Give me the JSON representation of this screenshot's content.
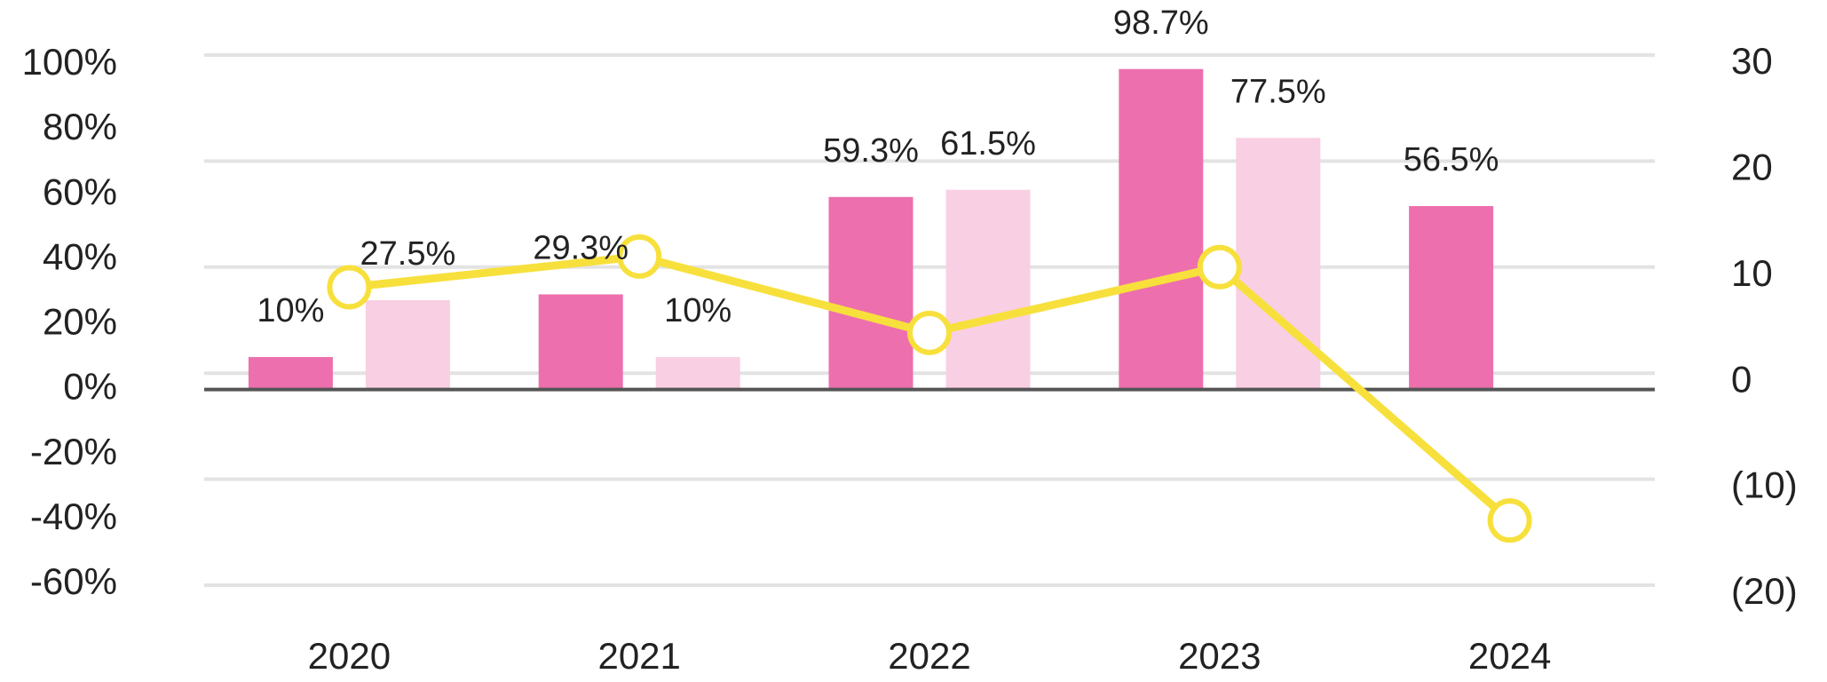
{
  "chart_data": {
    "type": "bar",
    "categories": [
      "2020",
      "2021",
      "2022",
      "2023",
      "2024"
    ],
    "series": [
      {
        "type": "bar",
        "color": "#ee6fad",
        "values": [
          10,
          29.3,
          59.3,
          98.7,
          56.5
        ],
        "value_labels": [
          "10%",
          "29.3%",
          "59.3%",
          "98.7%",
          "56.5%"
        ]
      },
      {
        "type": "bar",
        "color": "#f9cfe3",
        "values": [
          27.5,
          10,
          61.5,
          77.5,
          null
        ],
        "value_labels": [
          "27.5%",
          "10%",
          "61.5%",
          "77.5%",
          null
        ]
      },
      {
        "type": "line",
        "axis": "y2",
        "color": "#f7e03c",
        "values": [
          8.1,
          11,
          3.8,
          10,
          -13.9
        ]
      }
    ],
    "ylim": [
      -60,
      100
    ],
    "yticks": [
      {
        "value": 100,
        "label": "100%"
      },
      {
        "value": 80,
        "label": "80%"
      },
      {
        "value": 60,
        "label": "60%"
      },
      {
        "value": 40,
        "label": "40%"
      },
      {
        "value": 20,
        "label": "20%"
      },
      {
        "value": 0,
        "label": "0%"
      },
      {
        "value": -20,
        "label": "-20%"
      },
      {
        "value": -40,
        "label": "-40%"
      },
      {
        "value": -60,
        "label": "-60%"
      }
    ],
    "y2lim": [
      -20,
      30
    ],
    "y2ticks": [
      30,
      20,
      10,
      0,
      {
        "value": -10,
        "label": "(10)"
      },
      {
        "value": -20,
        "label": "(20)"
      }
    ],
    "grid": true
  }
}
